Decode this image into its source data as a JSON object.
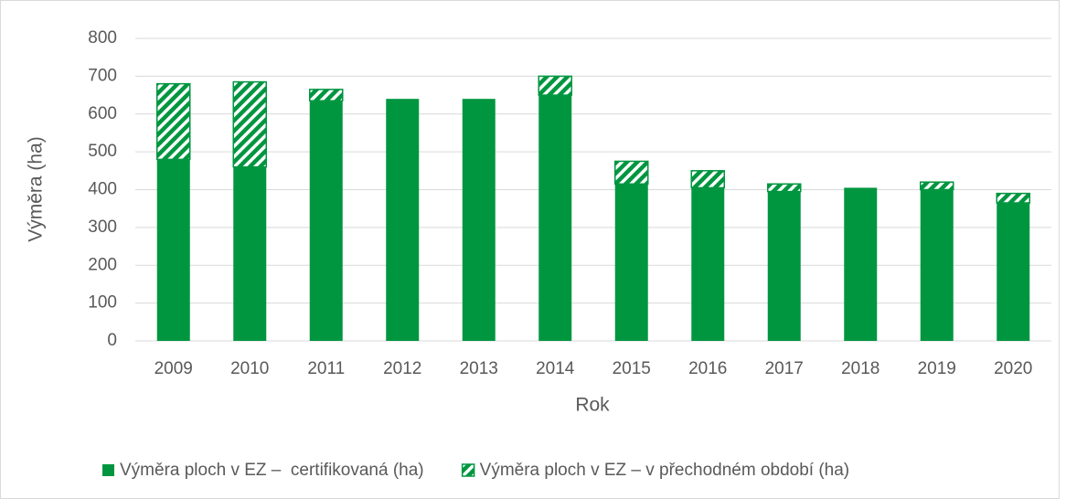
{
  "chart_data": {
    "type": "stacked_bar",
    "xlabel": "Rok",
    "ylabel": "Výměra (ha)",
    "categories": [
      "2009",
      "2010",
      "2011",
      "2012",
      "2013",
      "2014",
      "2015",
      "2016",
      "2017",
      "2018",
      "2019",
      "2020"
    ],
    "series": [
      {
        "name": "Výměra ploch v EZ –  certifikovaná (ha)",
        "color": "#009640",
        "pattern": "solid",
        "values": [
          480,
          460,
          635,
          640,
          640,
          650,
          415,
          405,
          395,
          405,
          400,
          365
        ]
      },
      {
        "name": "Výměra ploch v EZ – v přechodném období (ha)",
        "color": "#009640",
        "pattern": "hatch",
        "values": [
          200,
          225,
          30,
          0,
          0,
          50,
          60,
          45,
          20,
          0,
          20,
          25
        ]
      }
    ],
    "ylim": [
      0,
      800
    ],
    "yticks": [
      0,
      100,
      200,
      300,
      400,
      500,
      600,
      700,
      800
    ],
    "grid": true,
    "legend": "bottom"
  }
}
